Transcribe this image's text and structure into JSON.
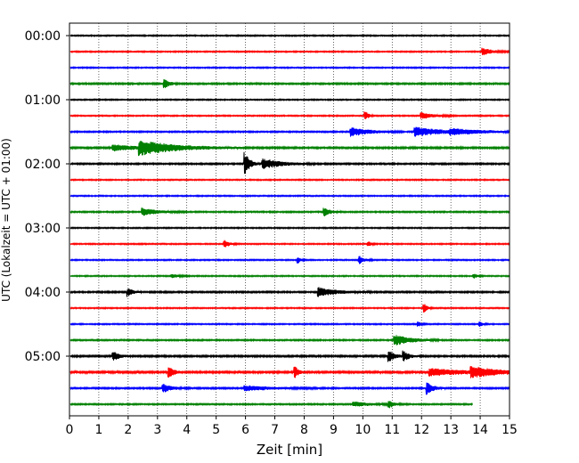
{
  "chart_data": {
    "type": "line",
    "title": "",
    "xlabel": "Zeit  [min]",
    "ylabel": "UTC (Lokalzeit = UTC + 01:00)",
    "xlim": [
      0,
      15
    ],
    "x_ticks": [
      "0",
      "1",
      "2",
      "3",
      "4",
      "5",
      "6",
      "7",
      "8",
      "9",
      "10",
      "11",
      "12",
      "13",
      "14",
      "15"
    ],
    "y_ticks": [
      "00:00",
      "01:00",
      "02:00",
      "03:00",
      "04:00",
      "05:00"
    ],
    "minutes_per_trace": 15,
    "grid": "x dotted",
    "colors": [
      "#000000",
      "#ff0000",
      "#0000ff",
      "#008000"
    ],
    "series": [
      {
        "start": "00:00",
        "color": "#000000",
        "noise": 0.35,
        "end_min": 15,
        "events": []
      },
      {
        "start": "00:15",
        "color": "#ff0000",
        "noise": 0.35,
        "end_min": 15,
        "events": [
          {
            "t": 14.1,
            "amp": 1.6,
            "dur": 0.3
          }
        ]
      },
      {
        "start": "00:30",
        "color": "#0000ff",
        "noise": 0.35,
        "end_min": 15,
        "events": []
      },
      {
        "start": "00:45",
        "color": "#008000",
        "noise": 0.45,
        "end_min": 15,
        "events": [
          {
            "t": 3.25,
            "amp": 2.2,
            "dur": 0.15
          }
        ]
      },
      {
        "start": "01:00",
        "color": "#000000",
        "noise": 0.35,
        "end_min": 15,
        "events": []
      },
      {
        "start": "01:15",
        "color": "#ff0000",
        "noise": 0.35,
        "end_min": 15,
        "events": [
          {
            "t": 10.1,
            "amp": 1.8,
            "dur": 0.1
          },
          {
            "t": 12.0,
            "amp": 1.4,
            "dur": 0.4
          }
        ]
      },
      {
        "start": "01:30",
        "color": "#0000ff",
        "noise": 0.4,
        "end_min": 15,
        "events": [
          {
            "t": 9.6,
            "amp": 2.0,
            "dur": 0.6
          },
          {
            "t": 11.8,
            "amp": 2.0,
            "dur": 0.9
          },
          {
            "t": 13.0,
            "amp": 1.0,
            "dur": 1.2
          }
        ]
      },
      {
        "start": "01:45",
        "color": "#008000",
        "noise": 0.5,
        "end_min": 15,
        "events": [
          {
            "t": 2.4,
            "amp": 3.0,
            "dur": 1.2
          },
          {
            "t": 1.5,
            "amp": 1.3,
            "dur": 0.8
          }
        ]
      },
      {
        "start": "02:00",
        "color": "#000000",
        "noise": 0.45,
        "end_min": 15,
        "events": [
          {
            "t": 6.0,
            "amp": 5.0,
            "dur": 0.15
          },
          {
            "t": 6.6,
            "amp": 2.2,
            "dur": 0.6
          }
        ]
      },
      {
        "start": "02:15",
        "color": "#ff0000",
        "noise": 0.35,
        "end_min": 15,
        "events": []
      },
      {
        "start": "02:30",
        "color": "#0000ff",
        "noise": 0.35,
        "end_min": 15,
        "events": []
      },
      {
        "start": "02:45",
        "color": "#008000",
        "noise": 0.4,
        "end_min": 15,
        "events": [
          {
            "t": 2.5,
            "amp": 1.6,
            "dur": 0.5
          },
          {
            "t": 8.7,
            "amp": 1.8,
            "dur": 0.2
          }
        ]
      },
      {
        "start": "03:00",
        "color": "#000000",
        "noise": 0.35,
        "end_min": 15,
        "events": []
      },
      {
        "start": "03:15",
        "color": "#ff0000",
        "noise": 0.35,
        "end_min": 15,
        "events": [
          {
            "t": 5.3,
            "amp": 1.6,
            "dur": 0.15
          },
          {
            "t": 10.2,
            "amp": 1.0,
            "dur": 0.1
          }
        ]
      },
      {
        "start": "03:30",
        "color": "#0000ff",
        "noise": 0.35,
        "end_min": 15,
        "events": [
          {
            "t": 7.8,
            "amp": 1.3,
            "dur": 0.1
          },
          {
            "t": 9.9,
            "amp": 1.6,
            "dur": 0.15
          }
        ]
      },
      {
        "start": "03:45",
        "color": "#008000",
        "noise": 0.35,
        "end_min": 15,
        "events": [
          {
            "t": 3.5,
            "amp": 0.9,
            "dur": 0.2
          },
          {
            "t": 13.8,
            "amp": 1.0,
            "dur": 0.1
          }
        ]
      },
      {
        "start": "04:00",
        "color": "#000000",
        "noise": 0.45,
        "end_min": 15,
        "events": [
          {
            "t": 2.0,
            "amp": 1.8,
            "dur": 0.15
          },
          {
            "t": 8.5,
            "amp": 2.0,
            "dur": 0.6
          }
        ]
      },
      {
        "start": "04:15",
        "color": "#ff0000",
        "noise": 0.35,
        "end_min": 15,
        "events": [
          {
            "t": 12.1,
            "amp": 1.8,
            "dur": 0.1
          }
        ]
      },
      {
        "start": "04:30",
        "color": "#0000ff",
        "noise": 0.35,
        "end_min": 15,
        "events": [
          {
            "t": 11.9,
            "amp": 1.0,
            "dur": 0.1
          },
          {
            "t": 14.0,
            "amp": 1.0,
            "dur": 0.1
          }
        ]
      },
      {
        "start": "04:45",
        "color": "#008000",
        "noise": 0.4,
        "end_min": 15,
        "events": [
          {
            "t": 11.1,
            "amp": 2.4,
            "dur": 0.5
          }
        ]
      },
      {
        "start": "05:00",
        "color": "#000000",
        "noise": 0.5,
        "end_min": 15,
        "events": [
          {
            "t": 1.5,
            "amp": 2.0,
            "dur": 0.2
          },
          {
            "t": 10.9,
            "amp": 2.4,
            "dur": 0.2
          },
          {
            "t": 11.4,
            "amp": 2.0,
            "dur": 0.2
          }
        ]
      },
      {
        "start": "05:15",
        "color": "#ff0000",
        "noise": 0.55,
        "end_min": 15,
        "events": [
          {
            "t": 3.4,
            "amp": 2.6,
            "dur": 0.15
          },
          {
            "t": 7.7,
            "amp": 2.4,
            "dur": 0.12
          },
          {
            "t": 12.3,
            "amp": 1.6,
            "dur": 1.2
          },
          {
            "t": 13.7,
            "amp": 2.2,
            "dur": 0.8
          }
        ]
      },
      {
        "start": "05:30",
        "color": "#0000ff",
        "noise": 0.45,
        "end_min": 15,
        "events": [
          {
            "t": 3.2,
            "amp": 1.8,
            "dur": 0.3
          },
          {
            "t": 6.0,
            "amp": 1.2,
            "dur": 0.8
          },
          {
            "t": 12.2,
            "amp": 2.6,
            "dur": 0.2
          }
        ]
      },
      {
        "start": "05:45",
        "color": "#008000",
        "noise": 0.4,
        "end_min": 13.75,
        "events": [
          {
            "t": 10.9,
            "amp": 1.6,
            "dur": 0.15
          },
          {
            "t": 9.7,
            "amp": 1.0,
            "dur": 0.6
          }
        ]
      }
    ]
  }
}
